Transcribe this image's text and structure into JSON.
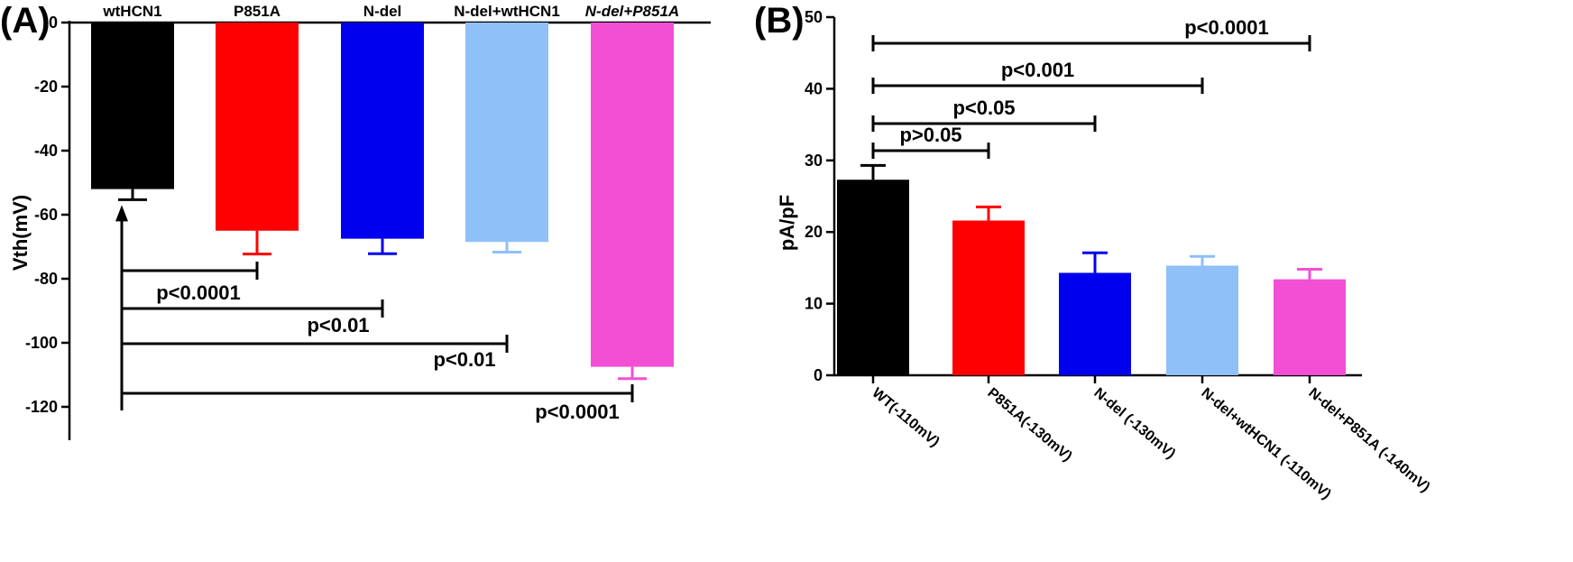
{
  "chart_data": [
    {
      "panel_label": "(A)",
      "type": "bar",
      "ylabel": "Vth(mV)",
      "xlabel": "",
      "ylim": [
        -130,
        0
      ],
      "y_ticks": [
        0,
        -20,
        -40,
        -60,
        -80,
        -100,
        -120
      ],
      "y_tick_labels": [
        "0",
        "-20",
        "-40",
        "-60",
        "-80",
        "-100",
        "-120"
      ],
      "categories": [
        "wtHCN1",
        "P851A",
        "N-del",
        "N-del+wtHCN1",
        "N-del+P851A"
      ],
      "category_italic": [
        false,
        false,
        false,
        false,
        true
      ],
      "values": [
        -52,
        -65,
        -67.5,
        -68.5,
        -107.5
      ],
      "error": [
        3.3,
        7.3,
        4.7,
        3.2,
        3.7
      ],
      "colors": [
        "#000000",
        "#ff0000",
        "#0000ee",
        "#8fc0f8",
        "#f24fd5"
      ],
      "significance": [
        {
          "from": 0,
          "to": 1,
          "label": "p<0.0001"
        },
        {
          "from": 0,
          "to": 2,
          "label": "p<0.01"
        },
        {
          "from": 0,
          "to": 3,
          "label": "p<0.01"
        },
        {
          "from": 0,
          "to": 4,
          "label": "p<0.0001"
        }
      ],
      "grid": false
    },
    {
      "panel_label": "(B)",
      "type": "bar",
      "ylabel": "pA/pF",
      "xlabel": "",
      "ylim": [
        0,
        50
      ],
      "y_ticks": [
        0,
        10,
        20,
        30,
        40,
        50
      ],
      "y_tick_labels": [
        "0",
        "10",
        "20",
        "30",
        "40",
        "50"
      ],
      "categories": [
        "WT(-110mV)",
        "P851A(-130mV)",
        "N-del (-130mV)",
        "N-del+wtHCN1 (-110mV)",
        "N-del+P851A (-140mV)"
      ],
      "values": [
        27.3,
        21.6,
        14.3,
        15.3,
        13.4
      ],
      "error": [
        2.0,
        1.9,
        2.8,
        1.3,
        1.4
      ],
      "colors": [
        "#000000",
        "#ff0000",
        "#0000ee",
        "#8fc0f8",
        "#f24fd5"
      ],
      "significance": [
        {
          "from": 0,
          "to": 1,
          "label": "p>0.05"
        },
        {
          "from": 0,
          "to": 2,
          "label": "p<0.05"
        },
        {
          "from": 0,
          "to": 3,
          "label": "p<0.001"
        },
        {
          "from": 0,
          "to": 4,
          "label": "p<0.0001"
        }
      ],
      "grid": false
    }
  ]
}
